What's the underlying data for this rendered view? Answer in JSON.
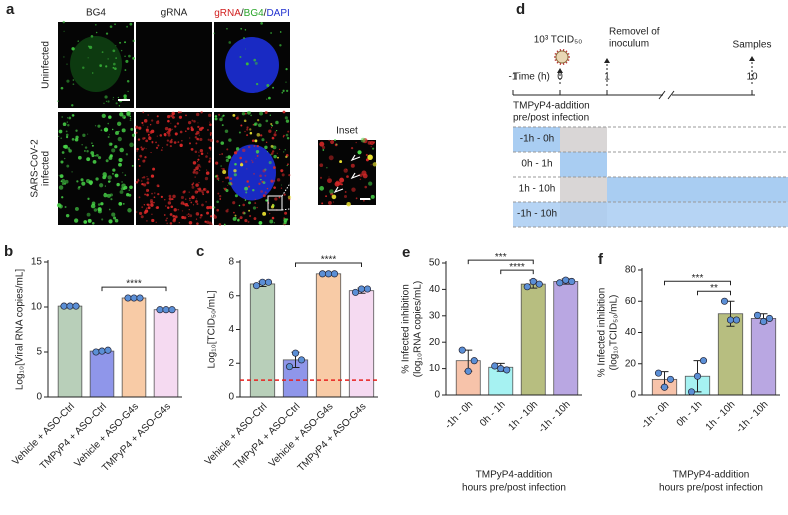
{
  "micrograph": {
    "label": "a",
    "columns": [
      "BG4",
      "gRNA"
    ],
    "merge_parts": [
      "gRNA",
      "/",
      "BG4",
      "/",
      "DAPI"
    ],
    "rows": [
      [
        "Uninfected"
      ],
      [
        "SARS-CoV-2",
        "infected"
      ]
    ],
    "inset": "Inset"
  },
  "timeline": {
    "label": "d",
    "dose": "10³ TCID₅₀",
    "removal": [
      "Removel of",
      "inoculum"
    ],
    "samples": "Samples",
    "axis_title": "Time (h)",
    "ticks": [
      -1,
      0,
      1,
      10
    ],
    "treatment_title": [
      "TMPyP4-addition",
      "pre/post infection"
    ],
    "rows": [
      "-1h - 0h",
      "0h - 1h",
      "1h - 10h",
      "-1h - 10h"
    ]
  },
  "chart_data": [
    {
      "type": "bar",
      "label": "b",
      "ylabel": [
        "Log₁₀[Viral RNA copies/mL]"
      ],
      "categories": [
        "Vehicle + ASO-Ctrl",
        "TMPyP4 + ASO-Ctrl",
        "Vehicle + ASO-G4s",
        "TMPyP4 + ASO-G4s"
      ],
      "values": [
        10.1,
        5.1,
        11.0,
        9.7
      ],
      "errors": [
        0.1,
        0.15,
        0.1,
        0.1
      ],
      "points": [
        [
          10.1,
          10.1,
          10.1
        ],
        [
          5.0,
          5.1,
          5.2
        ],
        [
          11.0,
          11.0,
          11.0
        ],
        [
          9.7,
          9.7,
          9.7
        ]
      ],
      "colors": [
        "#b8cfb9",
        "#8f96ea",
        "#f8cba6",
        "#f5daf1"
      ],
      "point_color": "#5b8fd6",
      "ylim": [
        0,
        15
      ],
      "yticks": [
        0,
        5,
        10,
        15
      ],
      "significance": [
        {
          "from": 1,
          "to": 3,
          "label": "****"
        }
      ]
    },
    {
      "type": "bar",
      "label": "c",
      "ylabel": [
        "Log₁₀[TCID₅₀/mL]"
      ],
      "categories": [
        "Vehicle + ASO-Ctrl",
        "TMPyP4 + ASO-Ctrl",
        "Vehicle + ASO-G4s",
        "TMPyP4 + ASO-G4s"
      ],
      "values": [
        6.7,
        2.2,
        7.3,
        6.3
      ],
      "errors": [
        0.15,
        0.45,
        0.05,
        0.15
      ],
      "points": [
        [
          6.6,
          6.8,
          6.8
        ],
        [
          1.8,
          2.6,
          2.2
        ],
        [
          7.3,
          7.3,
          7.3
        ],
        [
          6.2,
          6.4,
          6.4
        ]
      ],
      "colors": [
        "#b8cfb9",
        "#8f96ea",
        "#f8cba6",
        "#f5daf1"
      ],
      "point_color": "#5b8fd6",
      "ylim": [
        0,
        8
      ],
      "yticks": [
        0,
        2,
        4,
        6,
        8
      ],
      "reference_line": 1,
      "reference_color": "#e8201e",
      "significance": [
        {
          "from": 1,
          "to": 3,
          "label": "****"
        }
      ]
    },
    {
      "type": "bar",
      "label": "e",
      "ylabel": [
        "% Infected inhibition",
        "(log₁₀RNA copies/mL)"
      ],
      "xlabel": [
        "TMPyP4-addition",
        "hours pre/post infection"
      ],
      "categories": [
        "-1h - 0h",
        "0h - 1h",
        "1h - 10h",
        "-1h - 10h"
      ],
      "values": [
        13,
        10.5,
        42,
        43
      ],
      "errors": [
        4,
        1.5,
        1.5,
        1
      ],
      "points": [
        [
          17,
          9,
          13
        ],
        [
          11,
          10,
          9.5
        ],
        [
          41,
          43,
          42
        ],
        [
          42.5,
          43.5,
          43
        ]
      ],
      "colors": [
        "#f7c3aa",
        "#a6f2f2",
        "#b7be80",
        "#b9a7e2"
      ],
      "point_color": "#5b8fd6",
      "ylim": [
        0,
        50
      ],
      "yticks": [
        0,
        10,
        20,
        30,
        40,
        50
      ],
      "significance": [
        {
          "from": 0,
          "to": 2,
          "label": "***"
        },
        {
          "from": 1,
          "to": 2,
          "label": "****"
        }
      ]
    },
    {
      "type": "bar",
      "label": "f",
      "ylabel": [
        "% Infected inhibition",
        "(log₁₀TCID₅₀/mL)"
      ],
      "xlabel": [
        "TMPyP4-addition",
        "hours pre/post infection"
      ],
      "categories": [
        "-1h - 0h",
        "0h - 1h",
        "1h - 10h",
        "-1h - 10h"
      ],
      "values": [
        10,
        12,
        52,
        49
      ],
      "errors": [
        5,
        10,
        8,
        3
      ],
      "points": [
        [
          14,
          5,
          10
        ],
        [
          2,
          12,
          22
        ],
        [
          60,
          48,
          48
        ],
        [
          51,
          47,
          49
        ]
      ],
      "colors": [
        "#f7c3aa",
        "#a6f2f2",
        "#b7be80",
        "#b9a7e2"
      ],
      "point_color": "#5b8fd6",
      "ylim": [
        0,
        80
      ],
      "yticks": [
        0,
        20,
        40,
        60,
        80
      ],
      "significance": [
        {
          "from": 0,
          "to": 2,
          "label": "***"
        },
        {
          "from": 1,
          "to": 2,
          "label": "**"
        }
      ]
    }
  ]
}
